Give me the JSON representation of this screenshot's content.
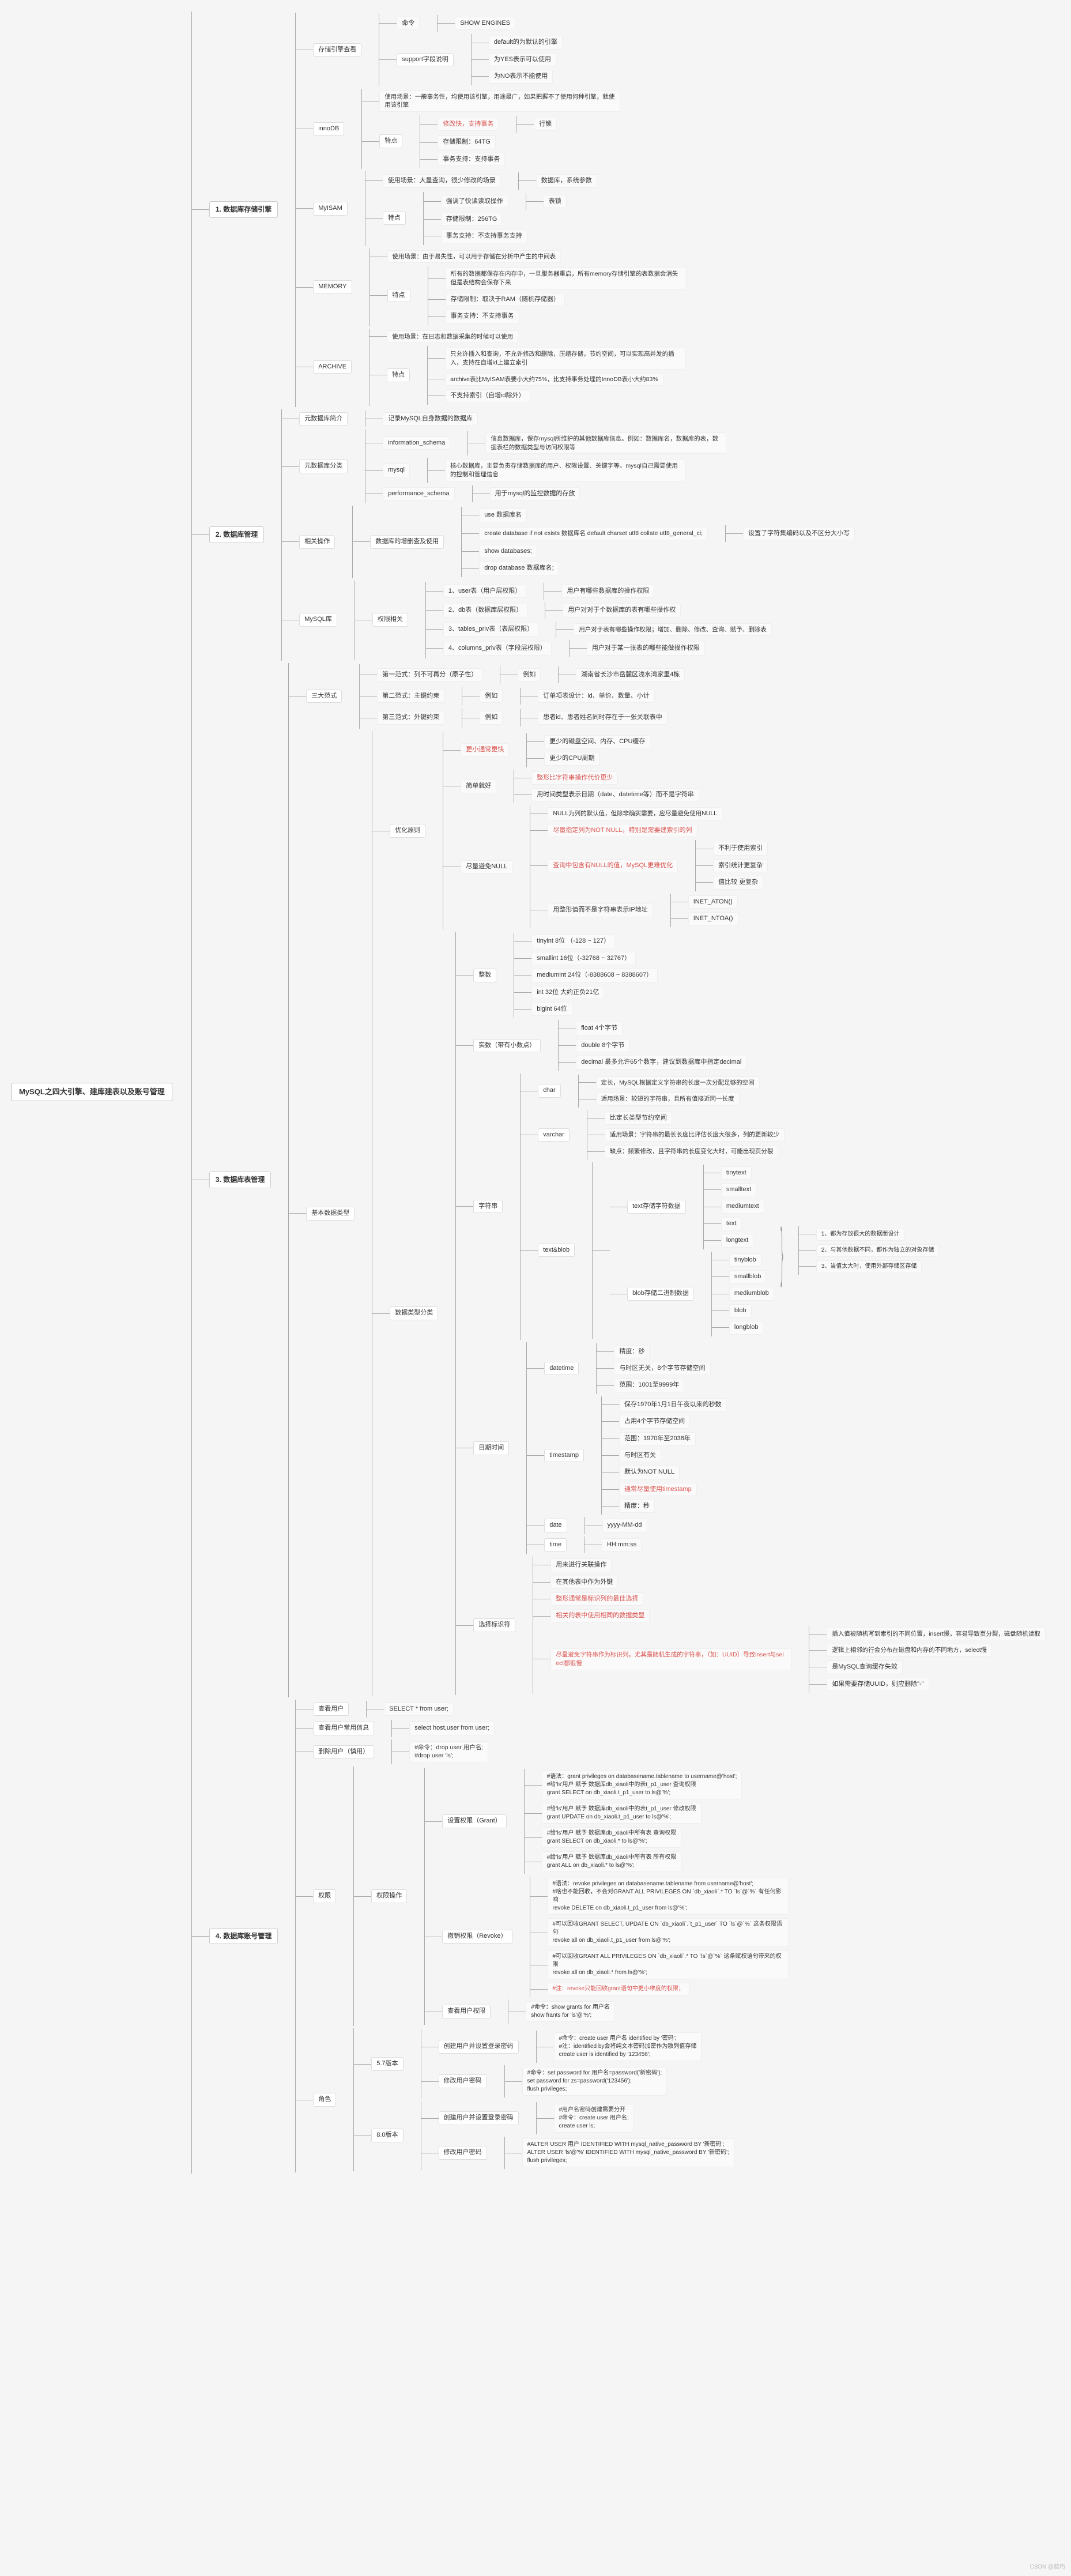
{
  "root": "MySQL之四大引擎、建库建表以及账号管理",
  "watermark": "CSDN @蓝朽",
  "sections": {
    "s1": {
      "title": "1. 数据库存储引擎",
      "cmd_check": {
        "label": "存储引擎查看",
        "cmd": "命令",
        "val": "SHOW ENGINES"
      },
      "support": {
        "label": "support字段说明",
        "items": [
          "default的为默认的引擎",
          "为YES表示可以使用",
          "为NO表示不能使用"
        ]
      },
      "innodb": {
        "name": "innoDB",
        "scene": "使用场景：一般事务性，均使用该引擎，用途最广，如果把握不了使用何种引擎，就使用该引擎",
        "feats_label": "特点",
        "feats": [
          {
            "k": "修改快，支持事务",
            "cls": "red",
            "v": "行锁"
          },
          {
            "k": "存储限制：64TG",
            "v": ""
          },
          {
            "k": "事务支持：支持事务",
            "v": ""
          }
        ]
      },
      "myisam": {
        "name": "MyISAM",
        "scene": "使用场景：大量查询，很少修改的场景",
        "scene_tail": "数据库，系统参数",
        "feats_label": "特点",
        "feats": [
          {
            "k": "强调了快读读取操作",
            "v": "表锁"
          },
          {
            "k": "存储限制：256TG",
            "v": ""
          },
          {
            "k": "事务支持：不支持事务支持",
            "v": ""
          }
        ]
      },
      "memory": {
        "name": "MEMORY",
        "scene": "使用场景：由于易失性，可以用于存储在分析中产生的中间表",
        "feats_label": "特点",
        "feats": [
          "所有的数据都保存在内存中，一旦服务器重启，所有memory存储引擎的表数据会消失但是表结构会保存下来",
          "存储限制：取决于RAM（随机存储器）",
          "事务支持：不支持事务"
        ]
      },
      "archive": {
        "name": "ARCHIVE",
        "scene": "使用场景：在日志和数据采集的时候可以使用",
        "feats_label": "特点",
        "feats": [
          "只允许插入和查询，不允许修改和删除，压缩存储，节约空间，可以实现高并发的插入，支持在自增id上建立索引",
          "archive表比MyISAM表要小大约75%，比支持事务处理的InnoDB表小大约83%",
          "不支持索引（自增id除外）"
        ]
      }
    },
    "s2": {
      "title": "2. 数据库管理",
      "yuanku_label": "元数据库简介",
      "yuanku_val": "记录MySQL自身数据的数据库",
      "yuanku_class_label": "元数据库分类",
      "info_schema": {
        "k": "information_schema",
        "v": "信息数据库，保存mysql所维护的其他数据库信息。例如：数据库名，数据库的表，数据表栏的数据类型与访问权限等"
      },
      "mysql": {
        "k": "mysql",
        "v": "核心数据库，主要负责存储数据库的用户、权限设置、关键字等。mysql自己需要使用的控制和管理信息"
      },
      "perf": {
        "k": "performance_schema",
        "v": "用于mysql的监控数据的存放"
      },
      "ops_label": "相关操作",
      "ops_sub": "数据库的增删查及使用",
      "ops": [
        {
          "k": "use 数据库名",
          "v": ""
        },
        {
          "k": "create database if not exists 数据库名 default charset utf8 collate utf8_general_ci;",
          "v": "设置了字符集编码以及不区分大小写"
        },
        {
          "k": "show databases;",
          "v": ""
        },
        {
          "k": "drop database 数据库名;",
          "v": ""
        }
      ],
      "priv_label": "MySQL库",
      "priv_sub": "权限相关",
      "privs": [
        {
          "k": "1、user表（用户层权限）",
          "v": "用户有哪些数据库的操作权限"
        },
        {
          "k": "2、db表（数据库层权限）",
          "v": "用户对对于个数据库的表有哪些操作权"
        },
        {
          "k": "3、tables_priv表（表层权限）",
          "v": "用户对于表有哪些操作权限；增加、删除、修改、查询、赋予、删除表"
        },
        {
          "k": "4、columns_priv表（字段层权限）",
          "v": "用户对于某一张表的哪些能做操作权限"
        }
      ]
    },
    "s3": {
      "title": "3. 数据库表管理",
      "nf_label": "三大范式",
      "nfs": [
        {
          "k": "第一范式：列不可再分（原子性）",
          "ex": "例如",
          "v": "湖南省长沙市岳麓区浅水湾家里4栋"
        },
        {
          "k": "第二范式：主键约束",
          "ex": "例如",
          "v": "订单项表设计：id、单价、数量、小计"
        },
        {
          "k": "第三范式：外键约束",
          "ex": "例如",
          "v": "患者id、患者姓名同时存在于一张关联表中"
        }
      ],
      "basic_label": "基本数据类型",
      "yh_label": "优化原则",
      "smaller_label": "更小通常更快",
      "smaller": [
        "更少的磁盘空间、内存、CPU缓存",
        "更少的CPU周期"
      ],
      "simple_label": "简单就好",
      "simple": [
        {
          "t": "整形比字符串操作代价更少",
          "cls": "red"
        },
        {
          "t": "用时间类型表示日期（date、datetime等）而不是字符串"
        }
      ],
      "null_label": "尽量避免NULL",
      "null": [
        "NULL为列的默认值，但除非确实需要，应尽量避免使用NULL",
        {
          "t": "尽量指定列为NOT NULL，特别是需要建索引的列",
          "cls": "red"
        },
        {
          "t": "查询中包含有NULL的值，MySQL更难优化",
          "cls": "red",
          "subs": [
            "不利于使用索引",
            "索引统计更复杂",
            "值比较 更复杂"
          ]
        },
        "用整形值而不是字符串表示IP地址",
        {
          "t": "",
          "subs": [
            "INET_ATON()",
            "INET_NTOA()"
          ]
        }
      ],
      "types_label": "数据类型分类",
      "int_label": "整数",
      "ints": [
        "tinyint 8位 （-128 ~ 127）",
        "smallint 16位（-32768 ~ 32767）",
        "mediumint 24位（-8388608 ~ 8388607）",
        "int 32位 大约正负21亿",
        "bigint 64位"
      ],
      "real_label": "实数（带有小数点）",
      "reals": [
        "float 4个字节",
        "double 8个字节",
        "decimal 最多允许65个数字，建议到数据库中指定decimal"
      ],
      "str_label": "字符串",
      "char": {
        "name": "char",
        "p1": "定长，MySQL根据定义字符串的长度一次分配足够的空间",
        "p2": "适用场景：较短的字符串，且所有值接近同一长度"
      },
      "varchar": {
        "name": "varchar",
        "p1": "比定长类型节约空间",
        "p2": "适用场景：字符串的最长长度比评估长度大很多，列的更新较少",
        "p3": "缺点：频繁修改，且字符串的长度变化大时，可能出现页分裂"
      },
      "textblob_label": "text&blob",
      "text_label": "text存储字符数据",
      "texts": [
        "tinytext",
        "smalltext",
        "mediumtext",
        "text",
        "longtext"
      ],
      "blob_label": "blob存储二进制数据",
      "blobs": [
        "tinyblob",
        "smallblob",
        "mediumblob",
        "blob",
        "longblob"
      ],
      "textblob_notes": [
        "1、都为存放很大的数据而设计",
        "2、与其他数据不同，都作为独立的对象存储",
        "3、当值太大时，使用外部存储区存储"
      ],
      "dt_label": "日期时间",
      "datetime": {
        "name": "datetime",
        "p": [
          "精度：秒",
          "与时区无关，8个字节存储空间",
          "范围：1001至9999年"
        ]
      },
      "timestamp": {
        "name": "timestamp",
        "p": [
          "保存1970年1月1日午夜以来的秒数",
          "占用4个字节存储空间",
          "范围：1970年至2038年",
          "与时区有关",
          "默认为NOT NULL",
          "通常尽量使用timestamp",
          "精度：秒"
        ],
        "red_idx": [
          5
        ]
      },
      "date": {
        "name": "date",
        "v": "yyyy-MM-dd"
      },
      "time": {
        "name": "time",
        "v": "HH:mm:ss"
      },
      "pk_label": "选择标识符",
      "pk": [
        "用来进行关联操作",
        "在其他表中作为外键",
        {
          "t": "整形通常是标识列的最佳选择",
          "cls": "red"
        },
        {
          "t": "相关的表中使用相同的数据类型",
          "cls": "red"
        },
        {
          "t": "尽量避免字符串作为标识列，尤其是随机生成的字符串，（如：UUID）导致insert与select都很慢",
          "cls": "red",
          "subs": [
            "插入值被随机写到索引的不同位置，insert慢，容易导致页分裂，磁盘随机读取",
            "逻辑上相邻的行会分布在磁盘和内存的不同地方，select慢",
            "是MySQL查询缓存失效",
            "如果需要存储UUID，则应删除\"-\""
          ]
        }
      ]
    },
    "s4": {
      "title": "4. 数据库账号管理",
      "q_user": {
        "k": "查看用户",
        "v": "SELECT * from user;"
      },
      "q_priv": {
        "k": "查看用户常用信息",
        "v": "select host,user from user;"
      },
      "del": {
        "k": "删除用户（慎用）",
        "v": "#命令：drop user 用户名;\n#drop user 'ls';"
      },
      "priv_label": "权限",
      "priv_ops_label": "权限操作",
      "grant": {
        "name": "设置权限（Grant）",
        "lines": [
          "#语法：grant privileges on databasename.tablename to username@'host';\n#给'ls'用户 赋予 数据库db_xiaoli中的表t_p1_user 查询权限\ngrant SELECT on db_xiaoli.t_p1_user to ls@'%';",
          "#给'ls'用户 赋予 数据库db_xiaoli中的表t_p1_user 修改权限\ngrant UPDATE on db_xiaoli.t_p1_user to ls@'%';",
          "#给'ls'用户 赋予 数据库db_xiaoli中所有表 查询权限\ngrant SELECT on db_xiaoli.* to ls@'%';",
          "#给'ls'用户 赋予 数据库db_xiaoli中所有表 所有权限\ngrant ALL on db_xiaoli.* to ls@'%';"
        ]
      },
      "revoke": {
        "name": "撤销权限（Revoke）",
        "lines": [
          "#语法：revoke privileges on databasename.tablename from username@'host';\n#啥也不能回收，不会对GRANT ALL PRIVILEGES ON `db_xiaoli`.* TO `ls`@`%` 有任何影响\nrevoke DELETE on db_xiaoli.t_p1_user from ls@'%';",
          "#可以回收GRANT SELECT, UPDATE ON `db_xiaoli`.`t_p1_user` TO `ls`@`%` 这条权限语句\nrevoke all on db_xiaoli.t_p1_user from ls@'%';",
          "#可以回收GRANT ALL PRIVILEGES ON `db_xiaoli`.* TO `ls`@`%` 这条赋权语句带来的权限\nrevoke all on db_xiaoli.* from ls@'%';",
          "#注：revoke只能回收grant语句中更小维度的权限；"
        ],
        "red_idx": [
          3
        ]
      },
      "show": {
        "k": "查看用户权限",
        "v": "#命令：show grants for 用户名\nshow frants for 'ls'@'%';"
      },
      "role_label": "角色",
      "v57": {
        "name": "5.7版本",
        "create": {
          "k": "创建用户并设置登录密码",
          "v": "#命令：create user 用户名 identified by '密码';\n#注：identified by会将纯文本密码加密作为散列值存储\ncreate user ls identified by '123456';"
        },
        "modify": {
          "k": "修改用户密码",
          "v": "#命令：set password for 用户名=password('新密码');\nset password for zs=password('123456');\nflush privileges;"
        }
      },
      "v80": {
        "name": "8.0版本",
        "create": {
          "k": "创建用户并设置登录密码",
          "v": "#用户名密码创建需要分开\n#命令：create user 用户名;\ncreate user ls;"
        },
        "modify": {
          "k": "修改用户密码",
          "v": "#ALTER USER 用户 IDENTIFIED WITH mysql_native_password BY '新密码';\nALTER USER 'ls'@'%' IDENTIFIED WITH mysql_native_password BY '新密码';\nflush privileges;"
        }
      }
    }
  }
}
